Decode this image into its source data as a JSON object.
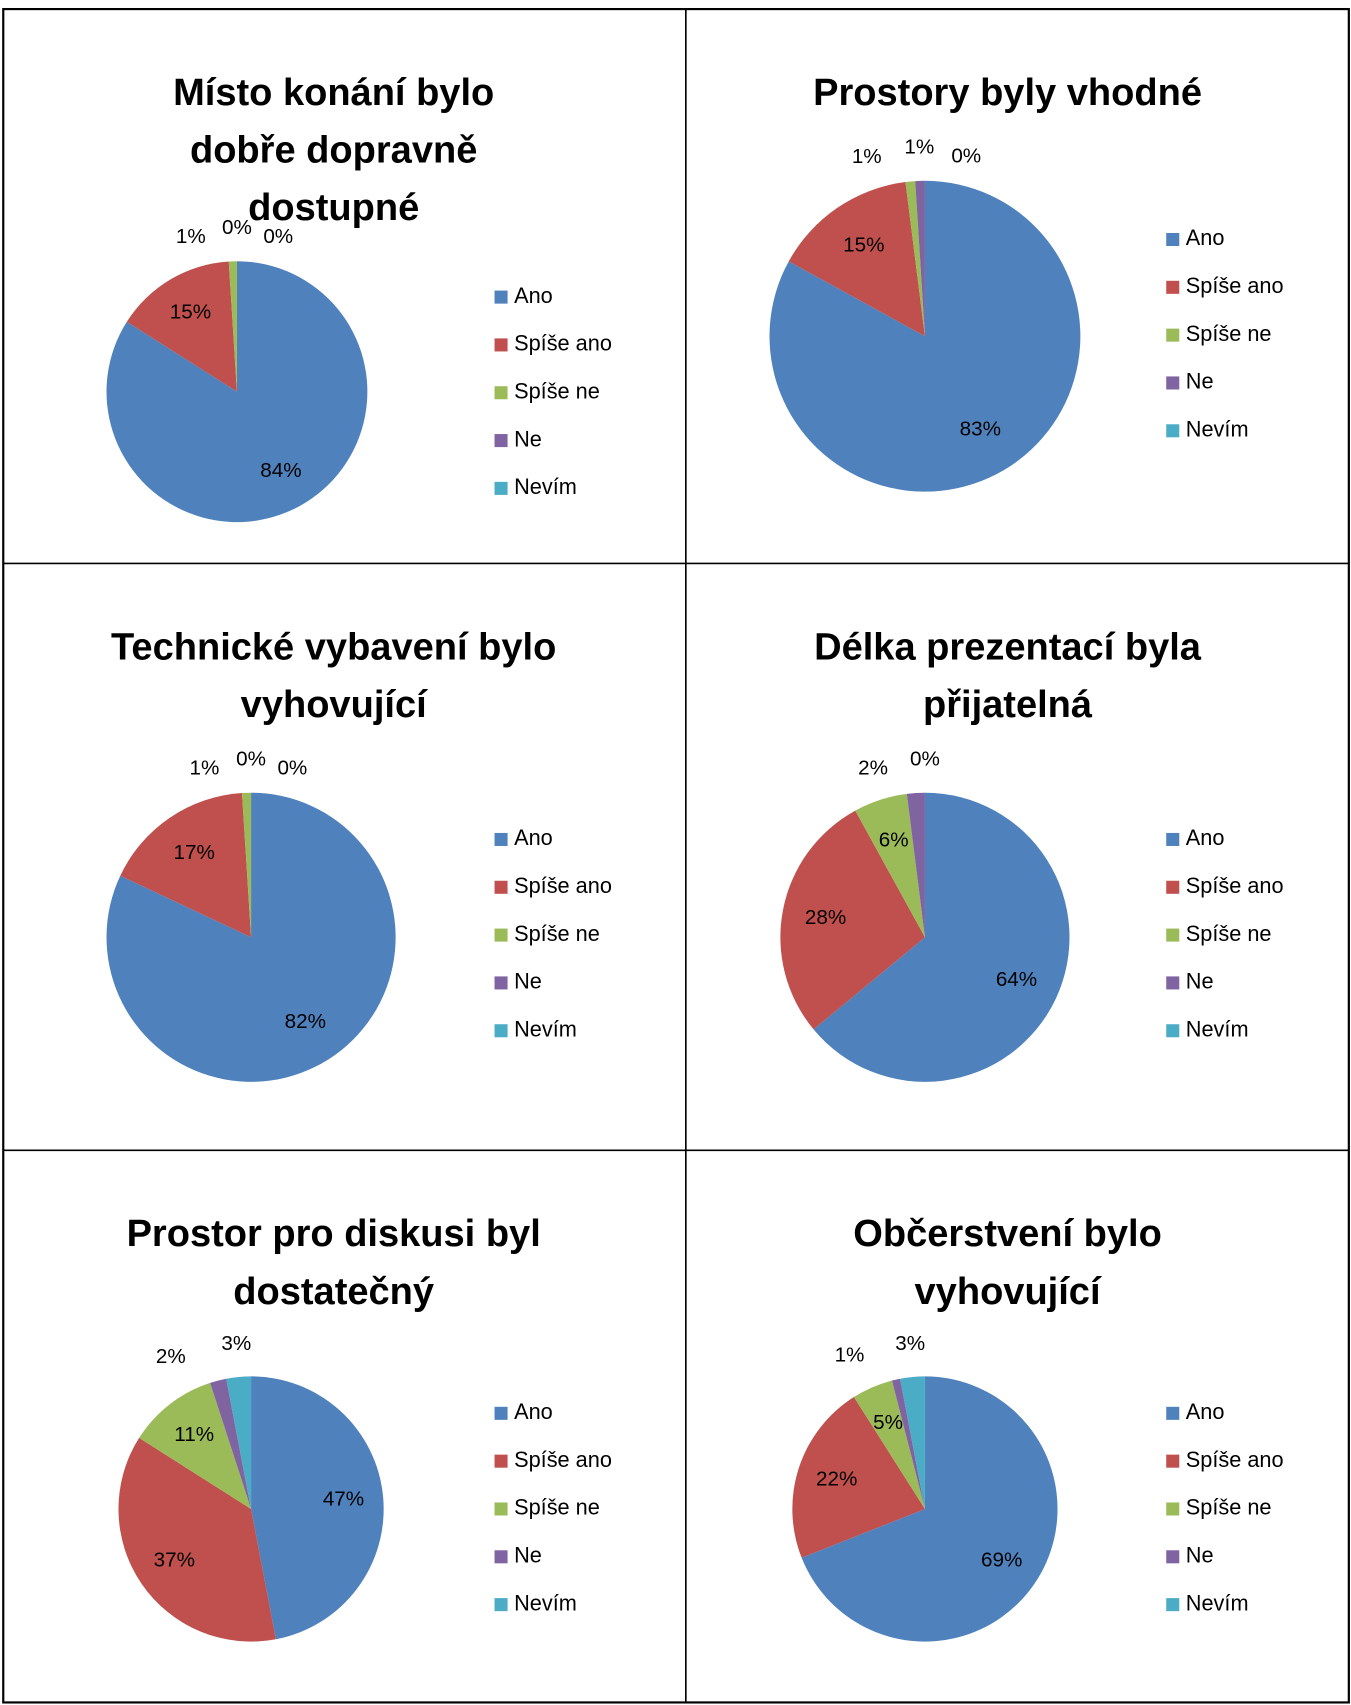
{
  "chart_data": [
    {
      "type": "pie",
      "title": [
        "Místo konání bylo",
        "dobře dopravně",
        "dostupné"
      ],
      "categories": [
        "Ano",
        "Spíše ano",
        "Spíše ne",
        "Ne",
        "Nevím"
      ],
      "values": [
        84,
        15,
        1,
        0,
        0
      ],
      "value_labels": [
        "84%",
        "15%",
        "1%",
        "0%",
        "0%"
      ],
      "colors": [
        "#4f81bd",
        "#c0504d",
        "#9bbb59",
        "#8064a2",
        "#4bacc6"
      ]
    },
    {
      "type": "pie",
      "title": [
        "Prostory byly vhodné"
      ],
      "categories": [
        "Ano",
        "Spíše ano",
        "Spíše ne",
        "Ne",
        "Nevím"
      ],
      "values": [
        83,
        15,
        1,
        1,
        0
      ],
      "value_labels": [
        "83%",
        "15%",
        "1%",
        "1%",
        "0%"
      ],
      "colors": [
        "#4f81bd",
        "#c0504d",
        "#9bbb59",
        "#8064a2",
        "#4bacc6"
      ]
    },
    {
      "type": "pie",
      "title": [
        "Technické vybavení bylo",
        "vyhovující"
      ],
      "categories": [
        "Ano",
        "Spíše ano",
        "Spíše ne",
        "Ne",
        "Nevím"
      ],
      "values": [
        82,
        17,
        1,
        0,
        0
      ],
      "value_labels": [
        "82%",
        "17%",
        "1%",
        "0%",
        "0%"
      ],
      "colors": [
        "#4f81bd",
        "#c0504d",
        "#9bbb59",
        "#8064a2",
        "#4bacc6"
      ]
    },
    {
      "type": "pie",
      "title": [
        "Délka prezentací byla",
        "přijatelná"
      ],
      "categories": [
        "Ano",
        "Spíše ano",
        "Spíše ne",
        "Ne",
        "Nevím"
      ],
      "values": [
        64,
        28,
        6,
        2,
        0
      ],
      "value_labels": [
        "64%",
        "28%",
        "6%",
        "2%",
        "0%"
      ],
      "colors": [
        "#4f81bd",
        "#c0504d",
        "#9bbb59",
        "#8064a2",
        "#4bacc6"
      ]
    },
    {
      "type": "pie",
      "title": [
        "Prostor pro diskusi byl",
        "dostatečný"
      ],
      "categories": [
        "Ano",
        "Spíše ano",
        "Spíše ne",
        "Ne",
        "Nevím"
      ],
      "values": [
        47,
        37,
        11,
        2,
        3
      ],
      "value_labels": [
        "47%",
        "37%",
        "11%",
        "2%",
        "3%"
      ],
      "colors": [
        "#4f81bd",
        "#c0504d",
        "#9bbb59",
        "#8064a2",
        "#4bacc6"
      ]
    },
    {
      "type": "pie",
      "title": [
        "Občerstvení bylo",
        "vyhovující"
      ],
      "categories": [
        "Ano",
        "Spíše ano",
        "Spíše ne",
        "Ne",
        "Nevím"
      ],
      "values": [
        69,
        22,
        5,
        1,
        3
      ],
      "value_labels": [
        "69%",
        "22%",
        "5%",
        "1%",
        "3%"
      ],
      "colors": [
        "#4f81bd",
        "#c0504d",
        "#9bbb59",
        "#8064a2",
        "#4bacc6"
      ]
    }
  ]
}
